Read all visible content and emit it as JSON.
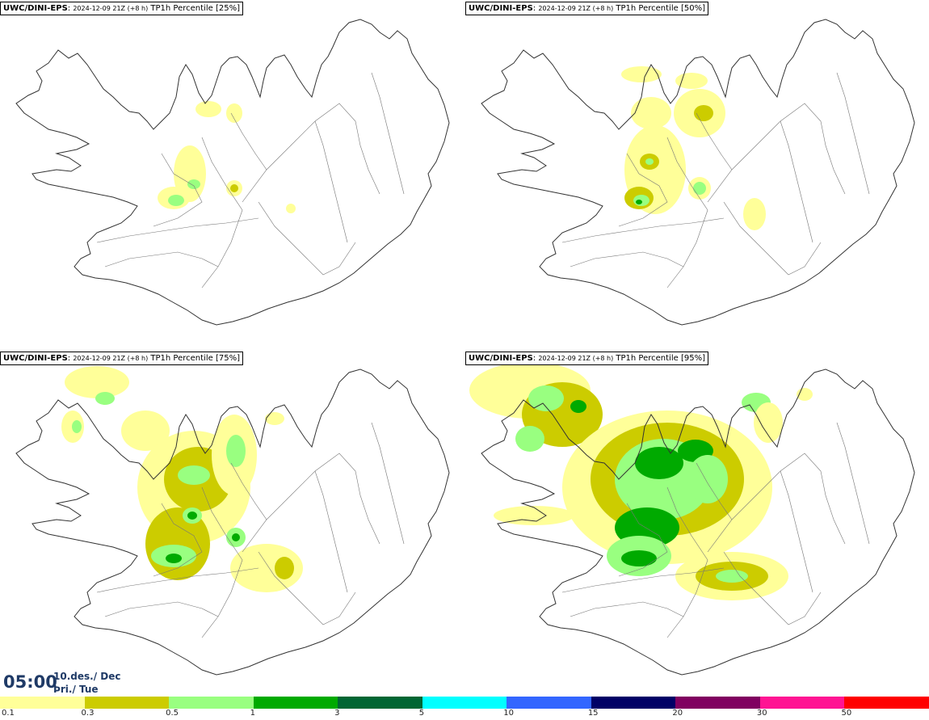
{
  "panels": [
    {
      "model": "UWC/DINI-EPS",
      "run": "2024-12-09 21Z (+8 h)",
      "product": "TP1h Percentile [25%]",
      "level": 0
    },
    {
      "model": "UWC/DINI-EPS",
      "run": "2024-12-09 21Z (+8 h)",
      "product": "TP1h Percentile [50%]",
      "level": 1
    },
    {
      "model": "UWC/DINI-EPS",
      "run": "2024-12-09 21Z (+8 h)",
      "product": "TP1h Percentile [75%]",
      "level": 2
    },
    {
      "model": "UWC/DINI-EPS",
      "run": "2024-12-09 21Z (+8 h)",
      "product": "TP1h Percentile [95%]",
      "level": 3
    }
  ],
  "valid_time": {
    "clock": "05:00",
    "date": "10.des./ Dec",
    "day": "Þri./ Tue"
  },
  "colorbar": {
    "colors": [
      "#ffff99",
      "#cccc00",
      "#99ff80",
      "#00aa00",
      "#006633",
      "#00ffff",
      "#3366ff",
      "#000066",
      "#800060",
      "#ff1493",
      "#ff0000"
    ],
    "labels": [
      "0.1",
      "0.3",
      "0.5",
      "1",
      "3",
      "5",
      "10",
      "15",
      "20",
      "30",
      "50"
    ]
  },
  "precip_colors": {
    "light": "#ffff99",
    "medium": "#cccc00",
    "heavy": "#99ff80",
    "strong": "#00aa00"
  }
}
